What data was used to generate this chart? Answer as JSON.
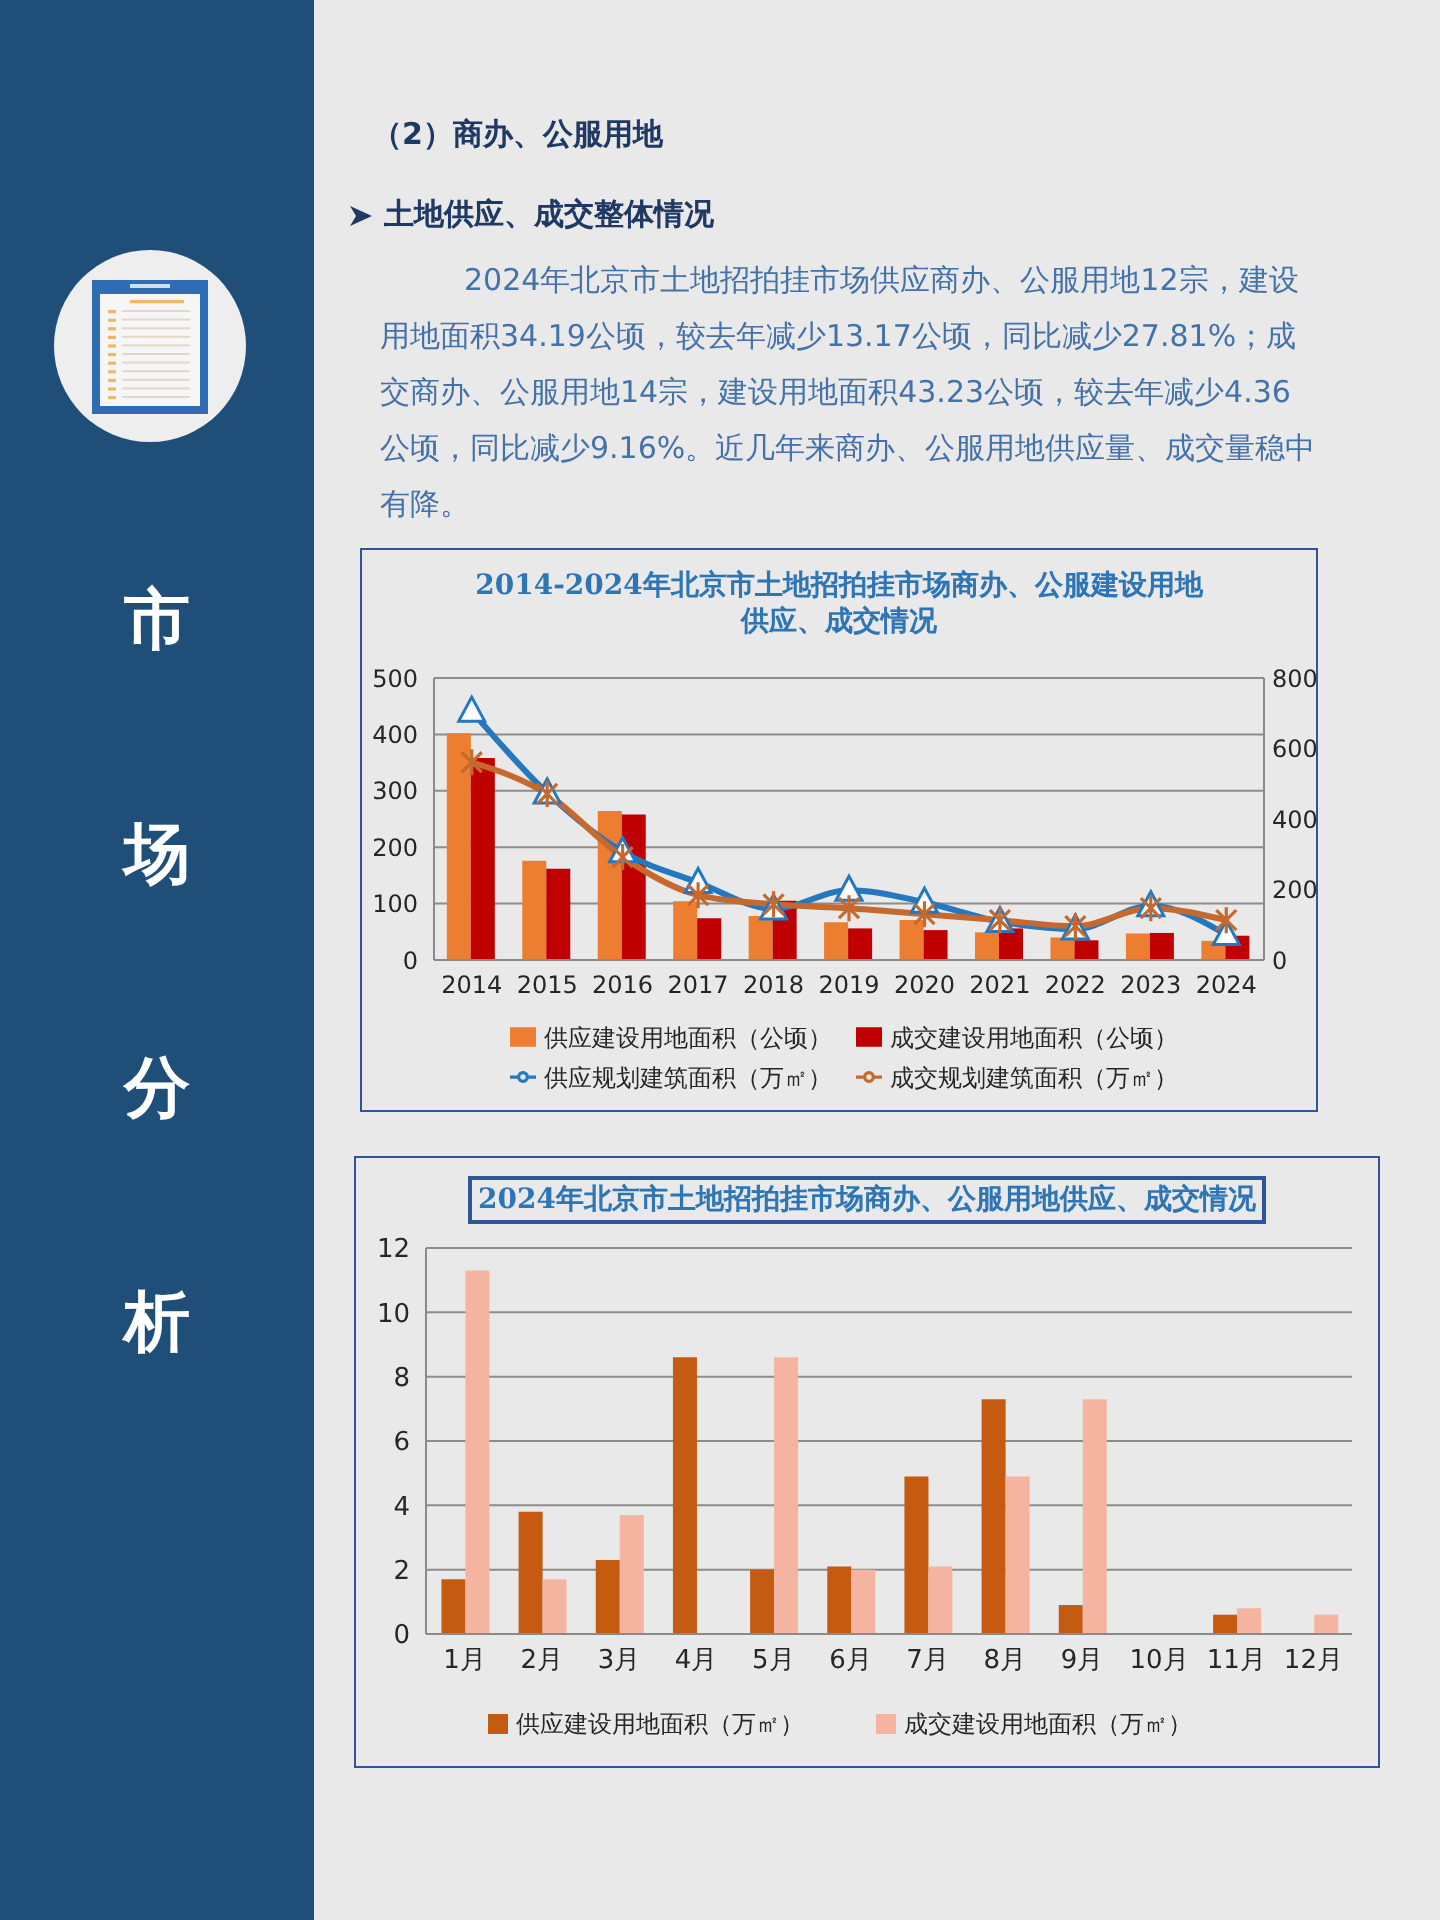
{
  "chart_data": [
    {
      "type": "other",
      "annotations": [
        "市场分析"
      ]
    },
    {
      "type": "other",
      "title": "（2）商办、公服用地",
      "subtitle": "土地供应、成交整体情况",
      "annotations": [
        "2024年北京市土地招拍挂市场供应商办、公服用地12宗，建设用地面积34.19公顷，较去年减少13.17公顷，同比减少27.81%；成交商办、公服用地14宗，建设用地面积43.23公顷，较去年减少4.36公顷，同比减少9.16%。近几年来商办、公服用地供应量、成交量稳中有降。"
      ]
    },
    {
      "type": "bar",
      "title": "2014-2024年北京市土地招拍挂市场商办、公服建设用地供应、成交情况",
      "categories": [
        "2014",
        "2015",
        "2016",
        "2017",
        "2018",
        "2019",
        "2020",
        "2021",
        "2022",
        "2023",
        "2024"
      ],
      "series": [
        {
          "name": "供应建设用地面积（公顷）",
          "color": "#ed7d31",
          "values": [
            402,
            176,
            264,
            104,
            78,
            67,
            71,
            49,
            40,
            47,
            34
          ]
        },
        {
          "name": "成交建设用地面积（公顷）",
          "color": "#c00000",
          "values": [
            358,
            162,
            258,
            74,
            105,
            56,
            53,
            56,
            35,
            48,
            43
          ]
        },
        {
          "name": "供应规划建筑面积（万㎡）",
          "type": "line",
          "axis": "y2",
          "marker": "triangle",
          "color": "#2378c0",
          "values": [
            706,
            474,
            307,
            220,
            145,
            198,
            164,
            109,
            88,
            154,
            72
          ]
        },
        {
          "name": "成交规划建筑面积（万㎡）",
          "type": "line",
          "axis": "y2",
          "marker": "cross",
          "color": "#c5692e",
          "values": [
            561,
            471,
            292,
            184,
            158,
            147,
            130,
            113,
            96,
            147,
            113
          ]
        }
      ],
      "ylim": [
        0,
        500
      ],
      "yticks": [
        0,
        100,
        200,
        300,
        400,
        500
      ],
      "y2lim": [
        0,
        800
      ],
      "y2ticks": [
        0,
        200,
        400,
        600,
        800
      ],
      "grid": "y",
      "legend": "bottom"
    },
    {
      "type": "bar",
      "title": "2024年北京市土地招拍挂市场商办、公服用地供应、成交情况",
      "categories": [
        "1月",
        "2月",
        "3月",
        "4月",
        "5月",
        "6月",
        "7月",
        "8月",
        "9月",
        "10月",
        "11月",
        "12月"
      ],
      "series": [
        {
          "name": "供应建设用地面积（万㎡）",
          "color": "#c55a11",
          "values": [
            1.7,
            3.8,
            2.3,
            8.6,
            2.0,
            2.1,
            4.9,
            7.3,
            0.9,
            null,
            0.6,
            null
          ]
        },
        {
          "name": "成交建设用地面积（万㎡）",
          "color": "#f4b4a0",
          "values": [
            11.3,
            1.7,
            3.7,
            null,
            8.6,
            2.0,
            2.1,
            4.9,
            7.3,
            null,
            0.8,
            0.6
          ]
        }
      ],
      "ylim": [
        0,
        12
      ],
      "yticks": [
        0,
        2,
        4,
        6,
        8,
        10,
        12
      ],
      "grid": "y",
      "legend": "bottom"
    }
  ]
}
